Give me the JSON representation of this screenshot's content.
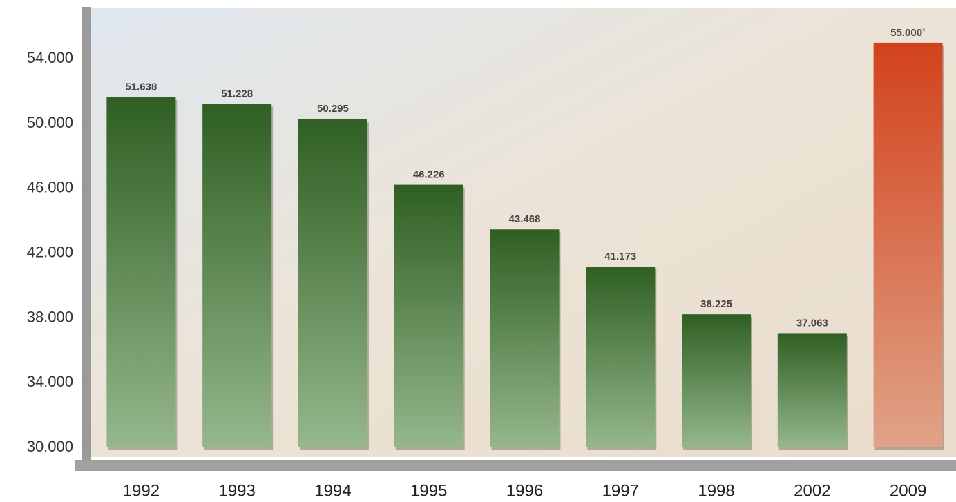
{
  "chart_data": {
    "type": "bar",
    "categories": [
      "1992",
      "1993",
      "1994",
      "1995",
      "1996",
      "1997",
      "1998",
      "2002",
      "2009"
    ],
    "values": [
      51638,
      51228,
      50295,
      46226,
      43468,
      41173,
      38225,
      37063,
      55000
    ],
    "value_labels": [
      "51.638",
      "51.228",
      "50.295",
      "46.226",
      "43.468",
      "41.173",
      "38.225",
      "37.063",
      "55.000¹"
    ],
    "colors": [
      "#2f5f22",
      "#2f5f22",
      "#2f5f22",
      "#2f5f22",
      "#2f5f22",
      "#2f5f22",
      "#2f5f22",
      "#2f5f22",
      "#d2421c"
    ],
    "ylim": [
      30000,
      57000
    ],
    "yticks": [
      {
        "value": 30000,
        "label": "30.000"
      },
      {
        "value": 34000,
        "label": "34.000"
      },
      {
        "value": 38000,
        "label": "38.000"
      },
      {
        "value": 42000,
        "label": "42.000"
      },
      {
        "value": 46000,
        "label": "46.000"
      },
      {
        "value": 50000,
        "label": "50.000"
      },
      {
        "value": 54000,
        "label": "54.000"
      }
    ]
  }
}
